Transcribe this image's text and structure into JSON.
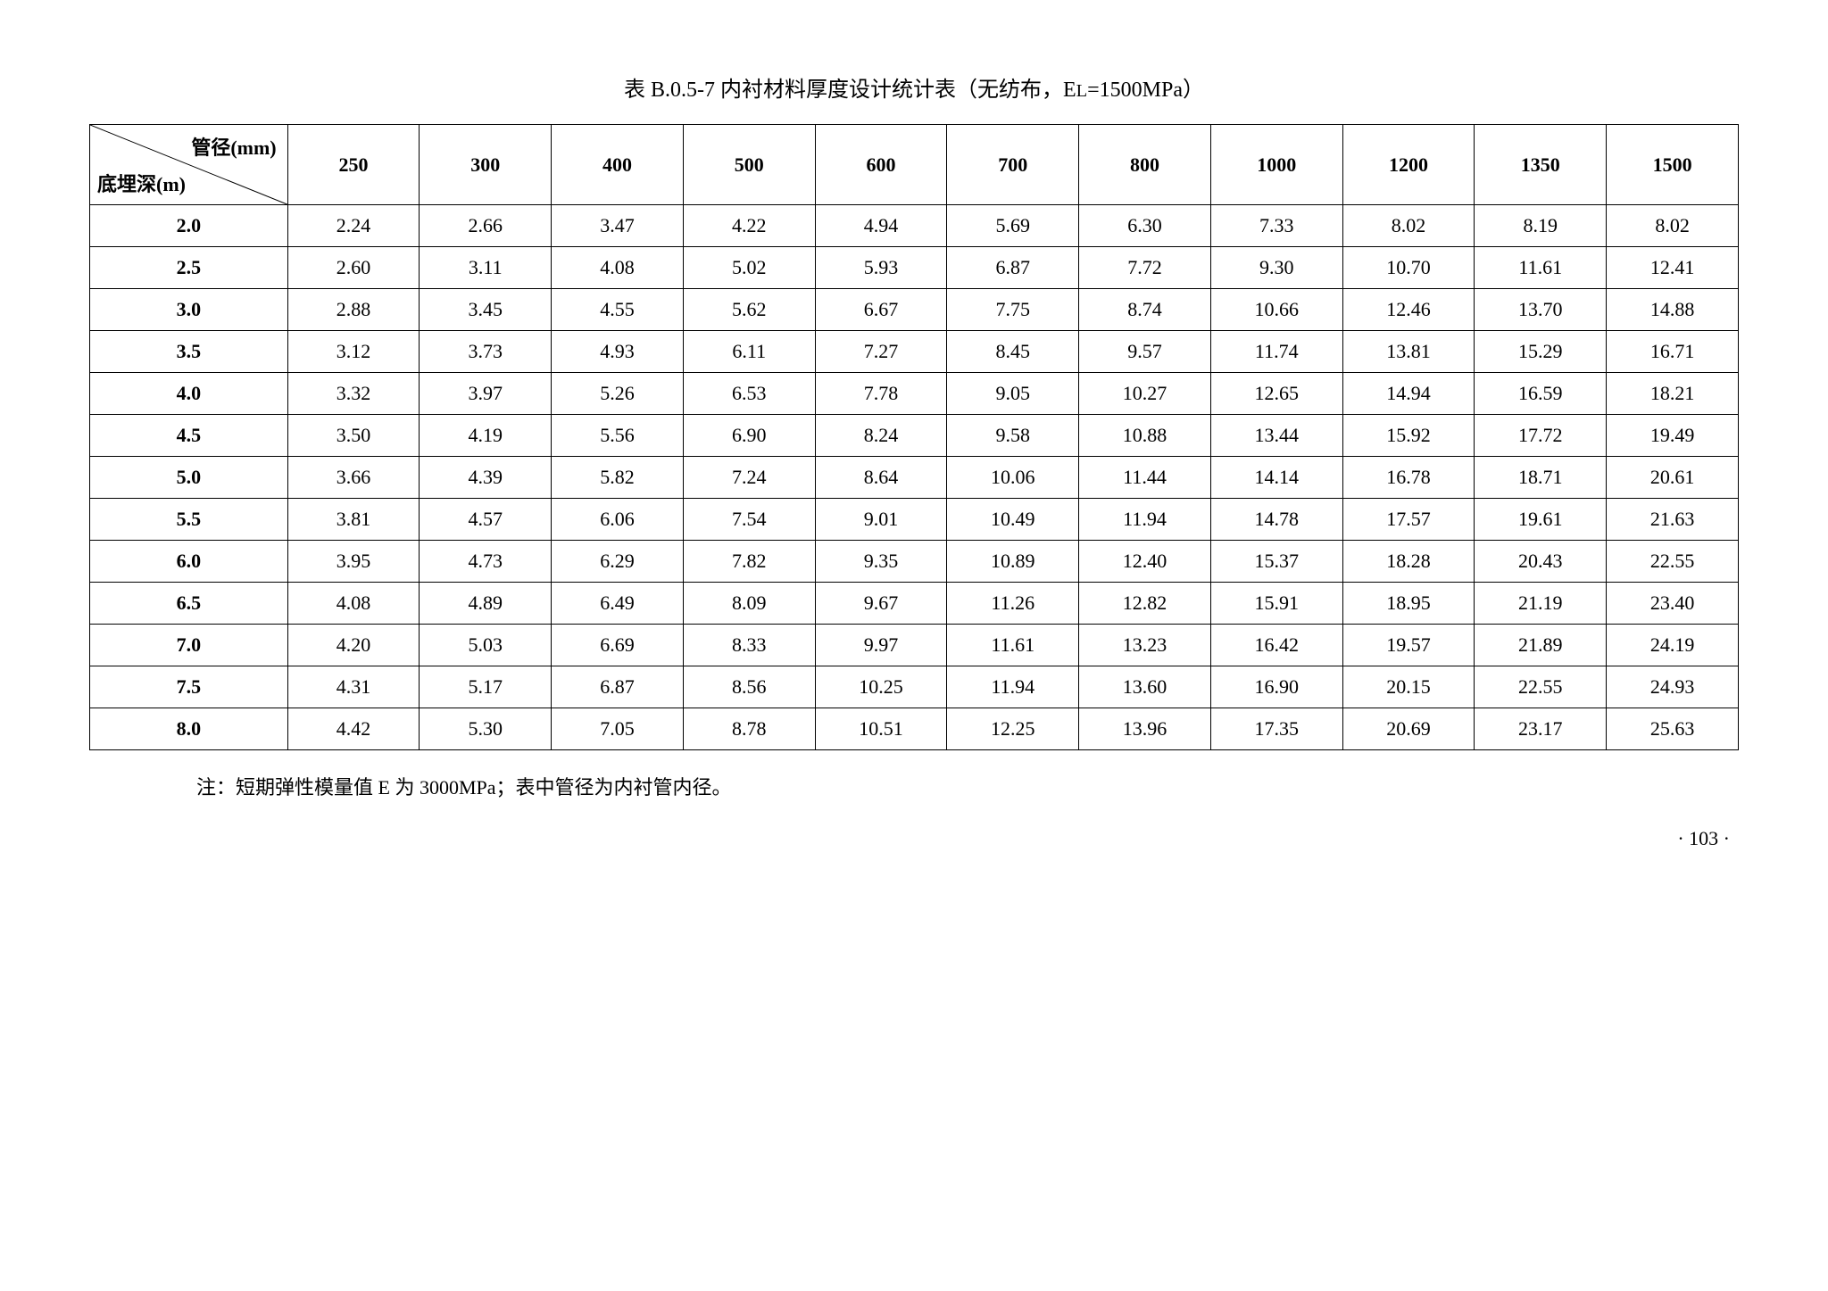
{
  "title_prefix": "表 B.0.5-7   内衬材料厚度设计统计表（无纺布，E",
  "title_sub": "L",
  "title_suffix": "=1500MPa）",
  "diag_top_label": "管径(mm)",
  "diag_bottom_label": "底埋深(m)",
  "columns": [
    "250",
    "300",
    "400",
    "500",
    "600",
    "700",
    "800",
    "1000",
    "1200",
    "1350",
    "1500"
  ],
  "row_heads": [
    "2.0",
    "2.5",
    "3.0",
    "3.5",
    "4.0",
    "4.5",
    "5.0",
    "5.5",
    "6.0",
    "6.5",
    "7.0",
    "7.5",
    "8.0"
  ],
  "rows": [
    [
      "2.24",
      "2.66",
      "3.47",
      "4.22",
      "4.94",
      "5.69",
      "6.30",
      "7.33",
      "8.02",
      "8.19",
      "8.02"
    ],
    [
      "2.60",
      "3.11",
      "4.08",
      "5.02",
      "5.93",
      "6.87",
      "7.72",
      "9.30",
      "10.70",
      "11.61",
      "12.41"
    ],
    [
      "2.88",
      "3.45",
      "4.55",
      "5.62",
      "6.67",
      "7.75",
      "8.74",
      "10.66",
      "12.46",
      "13.70",
      "14.88"
    ],
    [
      "3.12",
      "3.73",
      "4.93",
      "6.11",
      "7.27",
      "8.45",
      "9.57",
      "11.74",
      "13.81",
      "15.29",
      "16.71"
    ],
    [
      "3.32",
      "3.97",
      "5.26",
      "6.53",
      "7.78",
      "9.05",
      "10.27",
      "12.65",
      "14.94",
      "16.59",
      "18.21"
    ],
    [
      "3.50",
      "4.19",
      "5.56",
      "6.90",
      "8.24",
      "9.58",
      "10.88",
      "13.44",
      "15.92",
      "17.72",
      "19.49"
    ],
    [
      "3.66",
      "4.39",
      "5.82",
      "7.24",
      "8.64",
      "10.06",
      "11.44",
      "14.14",
      "16.78",
      "18.71",
      "20.61"
    ],
    [
      "3.81",
      "4.57",
      "6.06",
      "7.54",
      "9.01",
      "10.49",
      "11.94",
      "14.78",
      "17.57",
      "19.61",
      "21.63"
    ],
    [
      "3.95",
      "4.73",
      "6.29",
      "7.82",
      "9.35",
      "10.89",
      "12.40",
      "15.37",
      "18.28",
      "20.43",
      "22.55"
    ],
    [
      "4.08",
      "4.89",
      "6.49",
      "8.09",
      "9.67",
      "11.26",
      "12.82",
      "15.91",
      "18.95",
      "21.19",
      "23.40"
    ],
    [
      "4.20",
      "5.03",
      "6.69",
      "8.33",
      "9.97",
      "11.61",
      "13.23",
      "16.42",
      "19.57",
      "21.89",
      "24.19"
    ],
    [
      "4.31",
      "5.17",
      "6.87",
      "8.56",
      "10.25",
      "11.94",
      "13.60",
      "16.90",
      "20.15",
      "22.55",
      "24.93"
    ],
    [
      "4.42",
      "5.30",
      "7.05",
      "8.78",
      "10.51",
      "12.25",
      "13.96",
      "17.35",
      "20.69",
      "23.17",
      "25.63"
    ]
  ],
  "footnote": "注：短期弹性模量值 E 为 3000MPa；表中管径为内衬管内径。",
  "page_number": "· 103 ·",
  "border_color": "#000000",
  "background_color": "#ffffff",
  "text_color": "#000000",
  "title_fontsize": 24,
  "cell_fontsize": 22,
  "footnote_fontsize": 22
}
